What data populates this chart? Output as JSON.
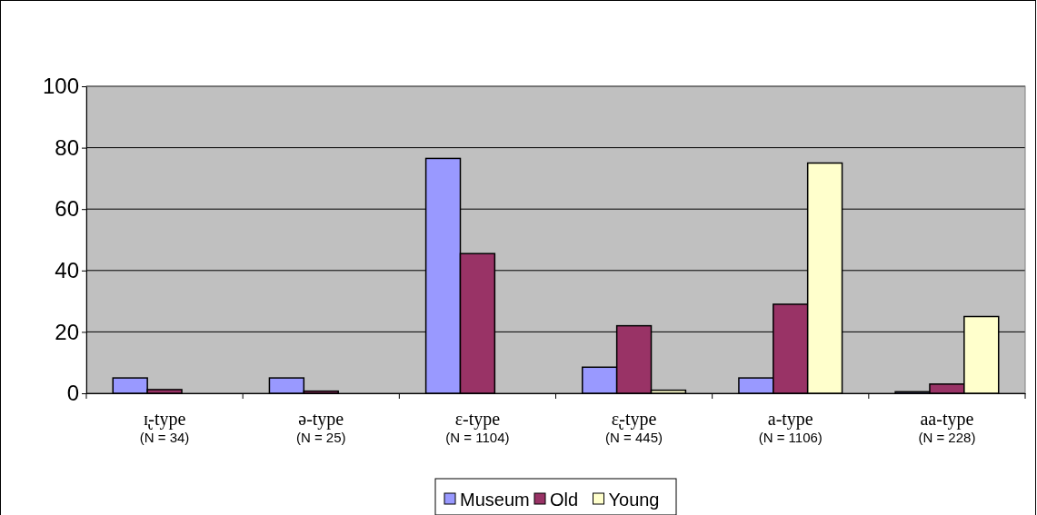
{
  "chart_data": {
    "type": "bar",
    "categories": [
      "ɪ̢-type\n(N = 34)",
      "ə-type\n(N = 25)",
      "ɛ-type\n(N = 1104)",
      "ɛ̢-type\n(N = 445)",
      "a-type\n(N = 1106)",
      "aa-type\n(N = 228)"
    ],
    "series": [
      {
        "name": "Museum",
        "color": "#9999ff",
        "values": [
          5,
          5,
          76.5,
          8.5,
          5,
          0.5
        ]
      },
      {
        "name": "Old",
        "color": "#993366",
        "values": [
          1.2,
          0.7,
          45.5,
          22,
          29,
          3
        ]
      },
      {
        "name": "Young",
        "color": "#ffffcc",
        "values": [
          0,
          0,
          0,
          1,
          75,
          25
        ]
      }
    ],
    "ylim": [
      0,
      100
    ],
    "yticks": [
      0,
      20,
      40,
      60,
      80,
      100
    ],
    "grid": "y",
    "legend": "bottom"
  }
}
